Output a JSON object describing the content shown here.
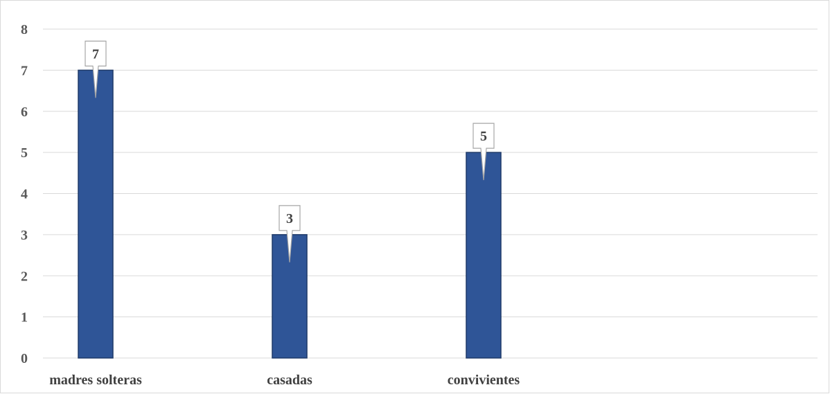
{
  "chart_data": {
    "type": "bar",
    "categories": [
      "madres solteras",
      "casadas",
      "convivientes"
    ],
    "values": [
      7,
      3,
      5
    ],
    "title": "",
    "xlabel": "",
    "ylabel": "",
    "ylim": [
      0,
      8
    ],
    "yticks": [
      "0",
      "1",
      "2",
      "3",
      "4",
      "5",
      "6",
      "7",
      "8"
    ],
    "data_labels": [
      "7",
      "3",
      "5"
    ],
    "grid": true,
    "legend": "none",
    "colors": {
      "bar_fill": "#2f5597",
      "bar_stroke": "#1f3a68",
      "gridline": "#d9d9d9",
      "chart_border": "#d9d9d9",
      "callout_border": "#a6a6a6",
      "callout_fill": "#ffffff"
    }
  }
}
